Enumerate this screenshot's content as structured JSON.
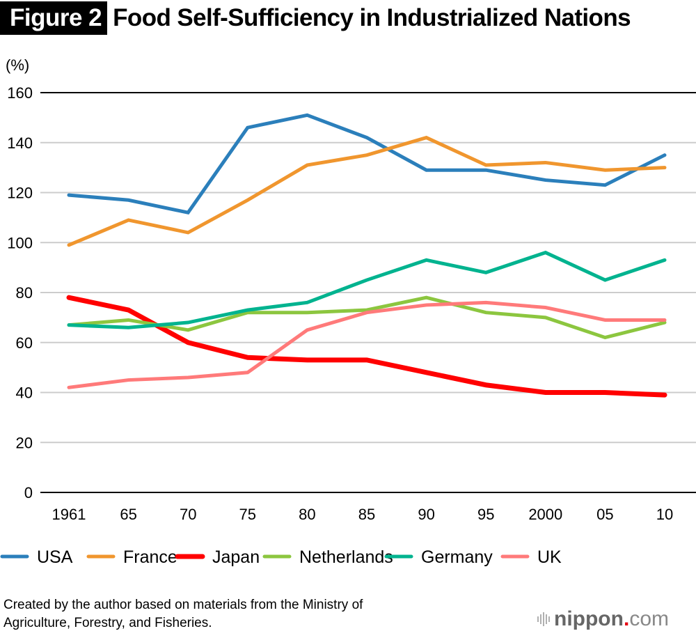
{
  "header": {
    "badge": "Figure 2",
    "title": "Food Self-Sufficiency in Industrialized Nations"
  },
  "footer": {
    "source_line1": "Created by the author based on materials from the Ministry of",
    "source_line2": "Agriculture, Forestry, and Fisheries.",
    "logo_word": "nippon",
    "logo_dot": ".",
    "logo_suffix": "com"
  },
  "chart_data": {
    "type": "line",
    "title": "Food Self-Sufficiency in Industrialized Nations",
    "ylabel": "(%)",
    "xlabel": "",
    "ylim": [
      0,
      160
    ],
    "yticks": [
      0,
      20,
      40,
      60,
      80,
      100,
      120,
      140,
      160
    ],
    "grid": true,
    "legend_position": "bottom",
    "categories": [
      "1961",
      "65",
      "70",
      "75",
      "80",
      "85",
      "90",
      "95",
      "2000",
      "05",
      "10"
    ],
    "series": [
      {
        "name": "USA",
        "color": "#2b7fbb",
        "values": [
          119,
          117,
          112,
          146,
          151,
          142,
          129,
          129,
          125,
          123,
          135
        ]
      },
      {
        "name": "France",
        "color": "#f0962e",
        "values": [
          99,
          109,
          104,
          117,
          131,
          135,
          142,
          131,
          132,
          129,
          130
        ]
      },
      {
        "name": "Japan",
        "color": "#ff0000",
        "values": [
          78,
          73,
          60,
          54,
          53,
          53,
          48,
          43,
          40,
          40,
          39
        ]
      },
      {
        "name": "Netherlands",
        "color": "#8cc63f",
        "values": [
          67,
          69,
          65,
          72,
          72,
          73,
          78,
          72,
          70,
          62,
          68
        ]
      },
      {
        "name": "Germany",
        "color": "#00b38f",
        "values": [
          67,
          66,
          68,
          73,
          76,
          85,
          93,
          88,
          96,
          85,
          93
        ]
      },
      {
        "name": "UK",
        "color": "#ff7a7a",
        "values": [
          42,
          45,
          46,
          48,
          65,
          72,
          75,
          76,
          74,
          69,
          69
        ]
      }
    ]
  }
}
